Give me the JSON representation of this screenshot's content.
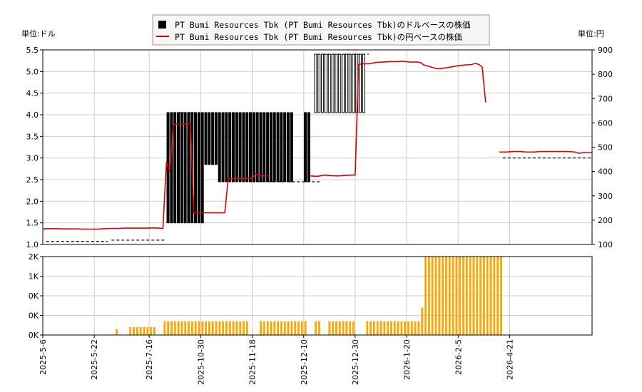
{
  "legend": {
    "items": [
      {
        "label": "PT Bumi Resources Tbk (PT Bumi Resources Tbk)のドルベースの株価",
        "kind": "candle",
        "color": "#000000"
      },
      {
        "label": "PT Bumi Resources Tbk (PT Bumi Resources Tbk)の円ベースの株価",
        "kind": "line",
        "color": "#dd0000"
      }
    ]
  },
  "left_unit": "単位:ドル",
  "right_unit": "単位:円",
  "colors": {
    "line": "#dd0000",
    "volume": "#ffa500",
    "candle": "#000000",
    "grid": "#cccccc"
  },
  "chart_data": {
    "type": "line",
    "left_axis": {
      "ylim": [
        1.0,
        5.5
      ],
      "ticks": [
        "1.0",
        "1.5",
        "2.0",
        "2.5",
        "3.0",
        "3.5",
        "4.0",
        "4.5",
        "5.0",
        "5.5"
      ]
    },
    "right_axis": {
      "ylim": [
        100,
        900
      ],
      "ticks": [
        "100",
        "200",
        "300",
        "400",
        "500",
        "600",
        "700",
        "800",
        "900"
      ]
    },
    "volume_axis": {
      "ticks": [
        "0K",
        "0K",
        "0K",
        "1K",
        "2K"
      ]
    },
    "x_ticks": [
      "2025-5-6",
      "2025-5-22",
      "2025-7-16",
      "2025-10-30",
      "2025-11-18",
      "2025-12-10",
      "2025-12-30",
      "2026-1-20",
      "2026-2-5",
      "2026-4-21"
    ],
    "yen_series": [
      [
        0,
        164
      ],
      [
        2,
        165
      ],
      [
        4,
        165
      ],
      [
        6,
        164
      ],
      [
        8,
        164
      ],
      [
        10,
        164
      ],
      [
        12,
        163
      ],
      [
        14,
        163
      ],
      [
        16,
        163
      ],
      [
        18,
        165
      ],
      [
        20,
        166
      ],
      [
        22,
        166
      ],
      [
        24,
        167
      ],
      [
        26,
        167
      ],
      [
        28,
        167
      ],
      [
        30,
        167
      ],
      [
        32,
        168
      ],
      [
        34,
        167
      ],
      [
        35,
        166
      ],
      [
        36,
        440
      ],
      [
        37,
        400
      ],
      [
        38,
        590
      ],
      [
        39,
        595
      ],
      [
        40,
        592
      ],
      [
        41,
        595
      ],
      [
        42,
        597
      ],
      [
        43,
        597
      ],
      [
        44,
        230
      ],
      [
        46,
        230
      ],
      [
        48,
        230
      ],
      [
        50,
        230
      ],
      [
        52,
        230
      ],
      [
        53,
        230
      ],
      [
        54,
        370
      ],
      [
        56,
        372
      ],
      [
        58,
        372
      ],
      [
        60,
        372
      ],
      [
        61,
        372
      ],
      [
        62,
        390
      ],
      [
        63,
        383
      ],
      [
        66,
        383
      ],
      [
        70,
        383
      ],
      [
        74,
        382
      ],
      [
        78,
        382
      ],
      [
        80,
        380
      ],
      [
        82,
        385
      ],
      [
        84,
        383
      ],
      [
        86,
        382
      ],
      [
        88,
        384
      ],
      [
        90,
        385
      ],
      [
        91,
        385
      ],
      [
        92,
        840
      ],
      [
        93,
        843
      ],
      [
        95,
        843
      ],
      [
        97,
        848
      ],
      [
        99,
        850
      ],
      [
        101,
        852
      ],
      [
        103,
        852
      ],
      [
        105,
        853
      ],
      [
        107,
        850
      ],
      [
        109,
        850
      ],
      [
        110,
        848
      ],
      [
        111,
        838
      ],
      [
        113,
        830
      ],
      [
        115,
        822
      ],
      [
        117,
        825
      ],
      [
        119,
        830
      ],
      [
        121,
        835
      ],
      [
        123,
        838
      ],
      [
        125,
        840
      ],
      [
        126,
        845
      ],
      [
        127,
        840
      ],
      [
        128,
        830
      ],
      [
        129,
        684
      ],
      [
        133,
        480
      ],
      [
        135,
        480
      ],
      [
        137,
        482
      ],
      [
        139,
        482
      ],
      [
        141,
        480
      ],
      [
        143,
        480
      ],
      [
        145,
        482
      ],
      [
        147,
        482
      ],
      [
        149,
        482
      ],
      [
        151,
        482
      ],
      [
        153,
        482
      ],
      [
        155,
        480
      ],
      [
        156,
        475
      ],
      [
        158,
        478
      ],
      [
        160,
        478
      ]
    ],
    "usd_bars": {
      "groups": [
        [
          36,
          47,
          1.5,
          4.05
        ],
        [
          47,
          51,
          2.85,
          4.05
        ],
        [
          51,
          55,
          2.45,
          4.05
        ],
        [
          55,
          61,
          2.45,
          4.05
        ],
        [
          61,
          73,
          2.45,
          4.05
        ],
        [
          76,
          78,
          2.45,
          4.05
        ],
        [
          79,
          81,
          4.05,
          5.4
        ],
        [
          81,
          94,
          4.05,
          5.4
        ]
      ]
    },
    "dashes": [
      {
        "x": [
          1,
          19
        ],
        "y": 1.07
      },
      {
        "x": [
          20,
          36
        ],
        "y": 1.1
      },
      {
        "x": [
          38,
          44
        ],
        "y": 4.05
      },
      {
        "x": [
          61,
          74
        ],
        "y": 2.45
      },
      {
        "x": [
          74,
          81
        ],
        "y": 2.45
      },
      {
        "x": [
          80,
          95
        ],
        "y": 5.4
      },
      {
        "x": [
          134,
          160
        ],
        "y": 3.0
      }
    ],
    "volume": [
      [
        21,
        0.15
      ],
      [
        25,
        0.2
      ],
      [
        26,
        0.2
      ],
      [
        27,
        0.2
      ],
      [
        28,
        0.2
      ],
      [
        29,
        0.2
      ],
      [
        30,
        0.2
      ],
      [
        31,
        0.2
      ],
      [
        32,
        0.2
      ],
      [
        35,
        0.35
      ],
      [
        36,
        0.35
      ],
      [
        37,
        0.35
      ],
      [
        38,
        0.35
      ],
      [
        39,
        0.35
      ],
      [
        40,
        0.35
      ],
      [
        41,
        0.35
      ],
      [
        42,
        0.35
      ],
      [
        43,
        0.35
      ],
      [
        44,
        0.35
      ],
      [
        45,
        0.35
      ],
      [
        46,
        0.35
      ],
      [
        47,
        0.35
      ],
      [
        48,
        0.35
      ],
      [
        49,
        0.35
      ],
      [
        50,
        0.35
      ],
      [
        51,
        0.35
      ],
      [
        52,
        0.35
      ],
      [
        53,
        0.35
      ],
      [
        54,
        0.35
      ],
      [
        55,
        0.35
      ],
      [
        56,
        0.35
      ],
      [
        57,
        0.35
      ],
      [
        58,
        0.35
      ],
      [
        59,
        0.35
      ],
      [
        63,
        0.35
      ],
      [
        64,
        0.35
      ],
      [
        65,
        0.35
      ],
      [
        66,
        0.35
      ],
      [
        67,
        0.35
      ],
      [
        68,
        0.35
      ],
      [
        69,
        0.35
      ],
      [
        70,
        0.35
      ],
      [
        71,
        0.35
      ],
      [
        72,
        0.35
      ],
      [
        73,
        0.35
      ],
      [
        74,
        0.35
      ],
      [
        75,
        0.35
      ],
      [
        76,
        0.35
      ],
      [
        79,
        0.35
      ],
      [
        80,
        0.35
      ],
      [
        83,
        0.35
      ],
      [
        84,
        0.35
      ],
      [
        85,
        0.35
      ],
      [
        86,
        0.35
      ],
      [
        87,
        0.35
      ],
      [
        88,
        0.35
      ],
      [
        89,
        0.35
      ],
      [
        90,
        0.35
      ],
      [
        94,
        0.35
      ],
      [
        95,
        0.35
      ],
      [
        96,
        0.35
      ],
      [
        97,
        0.35
      ],
      [
        98,
        0.35
      ],
      [
        99,
        0.35
      ],
      [
        100,
        0.35
      ],
      [
        101,
        0.35
      ],
      [
        102,
        0.35
      ],
      [
        103,
        0.35
      ],
      [
        104,
        0.35
      ],
      [
        105,
        0.35
      ],
      [
        106,
        0.35
      ],
      [
        107,
        0.35
      ],
      [
        108,
        0.35
      ],
      [
        109,
        0.35
      ],
      [
        110,
        0.7
      ],
      [
        111,
        2.0
      ],
      [
        112,
        2.0
      ],
      [
        113,
        2.0
      ],
      [
        114,
        2.0
      ],
      [
        115,
        2.0
      ],
      [
        116,
        2.0
      ],
      [
        117,
        2.0
      ],
      [
        118,
        2.0
      ],
      [
        119,
        2.0
      ],
      [
        120,
        2.0
      ],
      [
        121,
        2.0
      ],
      [
        122,
        2.0
      ],
      [
        123,
        2.0
      ],
      [
        124,
        2.0
      ],
      [
        125,
        2.0
      ],
      [
        126,
        2.0
      ],
      [
        127,
        2.0
      ],
      [
        128,
        2.0
      ],
      [
        129,
        2.0
      ],
      [
        130,
        2.0
      ],
      [
        131,
        2.0
      ],
      [
        132,
        2.0
      ],
      [
        133,
        2.0
      ]
    ]
  }
}
